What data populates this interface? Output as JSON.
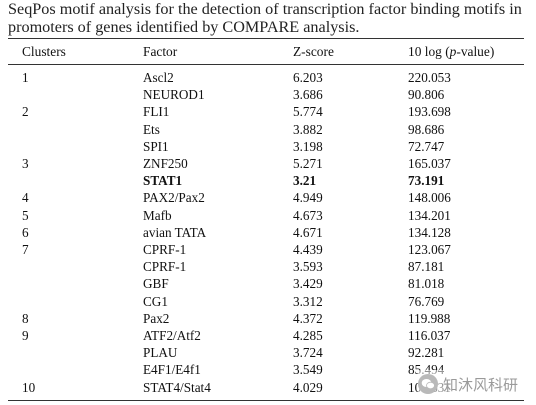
{
  "caption": "SeqPos motif analysis for the detection of transcription factor binding motifs in promoters of genes identified by COMPARE analysis.",
  "columns": {
    "clusters": "Clusters",
    "factor": "Factor",
    "zscore": "Z-score",
    "pvalue_prefix": "10 log (",
    "pvalue_italic": "p",
    "pvalue_suffix": "-value)"
  },
  "rows": [
    {
      "cluster": "1",
      "factor": "Ascl2",
      "z": "6.203",
      "p": "220.053",
      "bold": false
    },
    {
      "cluster": "",
      "factor": "NEUROD1",
      "z": "3.686",
      "p": "90.806",
      "bold": false
    },
    {
      "cluster": "2",
      "factor": "FLI1",
      "z": "5.774",
      "p": "193.698",
      "bold": false
    },
    {
      "cluster": "",
      "factor": "Ets",
      "z": "3.882",
      "p": "98.686",
      "bold": false
    },
    {
      "cluster": "",
      "factor": "SPI1",
      "z": "3.198",
      "p": "72.747",
      "bold": false
    },
    {
      "cluster": "3",
      "factor": "ZNF250",
      "z": "5.271",
      "p": "165.037",
      "bold": false
    },
    {
      "cluster": "",
      "factor": "STAT1",
      "z": "3.21",
      "p": "73.191",
      "bold": true
    },
    {
      "cluster": "4",
      "factor": "PAX2/Pax2",
      "z": "4.949",
      "p": "148.006",
      "bold": false
    },
    {
      "cluster": "5",
      "factor": "Mafb",
      "z": "4.673",
      "p": "134.201",
      "bold": false
    },
    {
      "cluster": "6",
      "factor": "avian TATA",
      "z": "4.671",
      "p": "134.128",
      "bold": false
    },
    {
      "cluster": "7",
      "factor": "CPRF-1",
      "z": "4.439",
      "p": "123.067",
      "bold": false
    },
    {
      "cluster": "",
      "factor": "CPRF-1",
      "z": "3.593",
      "p": "87.181",
      "bold": false
    },
    {
      "cluster": "",
      "factor": "GBF",
      "z": "3.429",
      "p": "81.018",
      "bold": false
    },
    {
      "cluster": "",
      "factor": "CG1",
      "z": "3.312",
      "p": "76.769",
      "bold": false
    },
    {
      "cluster": "8",
      "factor": "Pax2",
      "z": "4.372",
      "p": "119.988",
      "bold": false
    },
    {
      "cluster": "9",
      "factor": "ATF2/Atf2",
      "z": "4.285",
      "p": "116.037",
      "bold": false
    },
    {
      "cluster": "",
      "factor": "PLAU",
      "z": "3.724",
      "p": "92.281",
      "bold": false
    },
    {
      "cluster": "",
      "factor": "E4F1/E4f1",
      "z": "3.549",
      "p": "85.494",
      "bold": false
    },
    {
      "cluster": "10",
      "factor": "STAT4/Stat4",
      "z": "4.029",
      "p": "104.631",
      "bold": false
    }
  ],
  "watermark": {
    "text": "知沐风科研",
    "icon": "wechat-icon"
  }
}
